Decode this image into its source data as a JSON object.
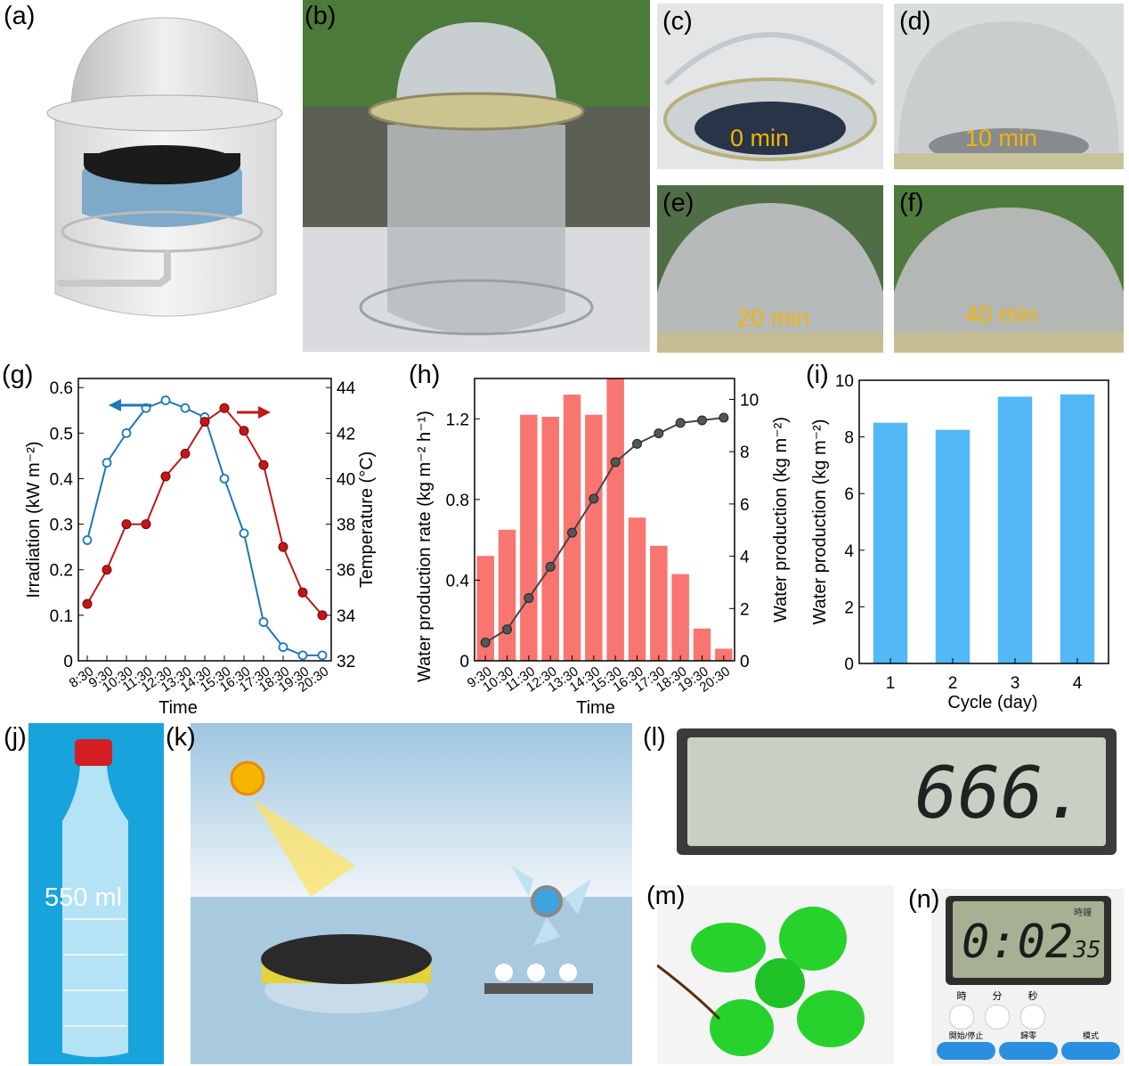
{
  "panels": {
    "a": {
      "label": "(a)",
      "icon": "solar-still-schematic-icon"
    },
    "b": {
      "label": "(b)",
      "icon": "solar-still-photo-icon"
    },
    "c": {
      "label": "(c)",
      "caption": "0 min"
    },
    "d": {
      "label": "(d)",
      "caption": "10 min"
    },
    "e": {
      "label": "(e)",
      "caption": "20 min"
    },
    "f": {
      "label": "(f)",
      "caption": "40 min"
    },
    "g": {
      "label": "(g)"
    },
    "h": {
      "label": "(h)"
    },
    "i": {
      "label": "(i)"
    },
    "j": {
      "label": "(j)",
      "caption": "550 ml",
      "icon": "water-bottle-icon"
    },
    "k": {
      "label": "(k)",
      "icon": "floating-generator-scene-icon"
    },
    "l": {
      "label": "(l)",
      "display": "666.",
      "icon": "lcd-display-icon"
    },
    "m": {
      "label": "(m)",
      "icon": "green-fan-icon"
    },
    "n": {
      "label": "(n)",
      "display": "0:02",
      "display_small": "35",
      "icon": "timer-icon",
      "buttons_top": [
        "時",
        "分",
        "秒"
      ],
      "buttons_bottom": [
        "開始/停止",
        "歸零",
        "模式"
      ],
      "corner_text": "時鐘"
    }
  },
  "chart_data": [
    {
      "id": "g",
      "type": "line",
      "categories": [
        "8:30",
        "9:30",
        "10:30",
        "11:30",
        "12:30",
        "13:30",
        "14:30",
        "15:30",
        "16:30",
        "17:30",
        "18:30",
        "19:30",
        "20:30"
      ],
      "xlabel": "Time",
      "ylabel_left": "Irradiation (kW m⁻²)",
      "ylabel_right": "Temperature (°C)",
      "ylim_left": [
        0,
        0.62
      ],
      "ylim_right": [
        32,
        44.4
      ],
      "yticks_left": [
        "0",
        "0.1",
        "0.2",
        "0.3",
        "0.4",
        "0.5",
        "0.6"
      ],
      "yticks_right": [
        "32",
        "34",
        "36",
        "38",
        "40",
        "42",
        "44"
      ],
      "series": [
        {
          "axis": "left",
          "color": "#1f77b4",
          "values": [
            0.265,
            0.435,
            0.5,
            0.555,
            0.572,
            0.555,
            0.535,
            0.4,
            0.28,
            0.085,
            0.03,
            0.012,
            0.012
          ]
        },
        {
          "axis": "right",
          "color": "#c01818",
          "x_index": [
            0,
            1,
            2,
            3,
            4,
            5,
            6,
            7,
            8,
            9,
            10,
            11,
            12
          ],
          "values": [
            34.5,
            36.0,
            38.0,
            38.0,
            40.1,
            41.1,
            42.5,
            43.1,
            42.1,
            40.6,
            37.0,
            35.0,
            34.0
          ]
        }
      ],
      "legend": "arrows"
    },
    {
      "id": "h",
      "type": "bar",
      "categories": [
        "9:30",
        "10:30",
        "11:30",
        "12:30",
        "13:30",
        "14:30",
        "15:30",
        "16:30",
        "17:30",
        "18:30",
        "19:30",
        "20:30"
      ],
      "xlabel": "Time",
      "ylabel_left": "Water production rate (kg m⁻² h⁻¹)",
      "ylabel_right": "Water production (kg m⁻²)",
      "ylim_left": [
        0,
        1.4
      ],
      "ylim_right": [
        0,
        10.8
      ],
      "yticks_left": [
        "0",
        "0.4",
        "0.8",
        "1.2"
      ],
      "yticks_right": [
        "0",
        "2",
        "4",
        "6",
        "8",
        "10"
      ],
      "bars": {
        "color": "#f87570",
        "values": [
          0.52,
          0.65,
          1.22,
          1.21,
          1.32,
          1.22,
          1.4,
          0.71,
          0.57,
          0.43,
          0.16,
          0.06
        ]
      },
      "line": {
        "color": "#444444",
        "values": [
          0.7,
          1.2,
          2.4,
          3.6,
          4.9,
          6.2,
          7.6,
          8.3,
          8.7,
          9.1,
          9.2,
          9.3
        ]
      }
    },
    {
      "id": "i",
      "type": "bar",
      "categories": [
        "1",
        "2",
        "3",
        "4"
      ],
      "xlabel": "Cycle (day)",
      "ylabel": "Water production (kg m⁻²)",
      "ylim": [
        0,
        10
      ],
      "yticks": [
        "0",
        "2",
        "4",
        "6",
        "8",
        "10"
      ],
      "color": "#52b9f6",
      "values": [
        8.5,
        8.25,
        9.42,
        9.5
      ]
    }
  ]
}
